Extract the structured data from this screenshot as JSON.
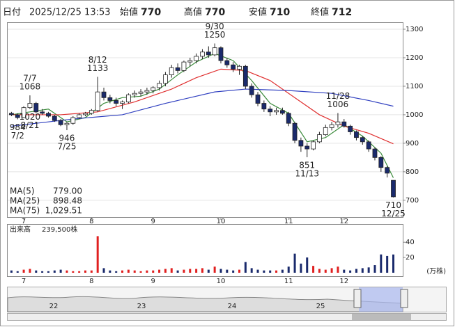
{
  "header": {
    "date_label": "日付",
    "datetime": "2025/12/25 13:53",
    "fields": [
      {
        "label": "始値",
        "value": 770
      },
      {
        "label": "高値",
        "value": 770
      },
      {
        "label": "安値",
        "value": 710
      },
      {
        "label": "終値",
        "value": 712
      }
    ]
  },
  "chart_data": [
    {
      "type": "candlestick",
      "ylim": [
        641,
        1322
      ],
      "yticks": [
        700,
        800,
        900,
        1000,
        1100,
        1200,
        1300
      ],
      "grid": true,
      "xticks": [
        {
          "value": 2,
          "label": "7"
        },
        {
          "value": 13,
          "label": "8"
        },
        {
          "value": 23,
          "label": "9"
        },
        {
          "value": 34,
          "label": "10"
        },
        {
          "value": 45,
          "label": "11"
        },
        {
          "value": 54,
          "label": "12"
        }
      ],
      "open": [
        1005,
        1000,
        990,
        1025,
        1040,
        1010,
        1005,
        995,
        980,
        965,
        970,
        990,
        1000,
        1005,
        1015,
        1080,
        1060,
        1050,
        1040,
        1045,
        1070,
        1075,
        1080,
        1085,
        1095,
        1110,
        1140,
        1165,
        1155,
        1185,
        1190,
        1205,
        1220,
        1210,
        1235,
        1190,
        1175,
        1160,
        1170,
        1100,
        1070,
        1040,
        1020,
        1010,
        1015,
        1005,
        970,
        910,
        890,
        880,
        905,
        930,
        955,
        965,
        975,
        960,
        940,
        920,
        905,
        880,
        850,
        815,
        770
      ],
      "high": [
        1010,
        1005,
        1030,
        1068,
        1045,
        1020,
        1010,
        1000,
        985,
        975,
        995,
        1005,
        1010,
        1020,
        1133,
        1095,
        1070,
        1060,
        1050,
        1075,
        1085,
        1090,
        1095,
        1100,
        1120,
        1150,
        1175,
        1180,
        1190,
        1200,
        1215,
        1230,
        1240,
        1250,
        1240,
        1200,
        1185,
        1175,
        1175,
        1110,
        1080,
        1050,
        1030,
        1025,
        1025,
        1010,
        975,
        920,
        900,
        910,
        940,
        965,
        975,
        1006,
        985,
        965,
        945,
        925,
        910,
        885,
        855,
        820,
        770
      ],
      "low": [
        995,
        984,
        988,
        1020,
        1005,
        1000,
        990,
        975,
        960,
        946,
        965,
        985,
        995,
        1000,
        1010,
        1050,
        1040,
        1030,
        1020,
        1040,
        1060,
        1065,
        1070,
        1075,
        1085,
        1100,
        1130,
        1145,
        1150,
        1170,
        1180,
        1195,
        1200,
        1205,
        1180,
        1165,
        1150,
        1140,
        1090,
        1060,
        1030,
        1010,
        995,
        1000,
        1000,
        960,
        900,
        870,
        851,
        875,
        900,
        925,
        945,
        955,
        955,
        930,
        910,
        895,
        870,
        840,
        800,
        780,
        710
      ],
      "close": [
        1000,
        990,
        1025,
        1040,
        1010,
        1005,
        995,
        980,
        965,
        970,
        990,
        1000,
        1005,
        1015,
        1080,
        1060,
        1050,
        1040,
        1045,
        1070,
        1075,
        1080,
        1085,
        1095,
        1110,
        1140,
        1165,
        1155,
        1185,
        1190,
        1205,
        1220,
        1210,
        1235,
        1190,
        1175,
        1160,
        1170,
        1100,
        1070,
        1040,
        1020,
        1010,
        1015,
        1005,
        970,
        910,
        890,
        880,
        905,
        930,
        955,
        965,
        975,
        960,
        940,
        920,
        905,
        880,
        850,
        815,
        795,
        712
      ],
      "annotations": [
        {
          "date": "7/7",
          "price": 1068,
          "side": "above"
        },
        {
          "date": "7/2",
          "price": 984,
          "side": "below"
        },
        {
          "date": "7/25",
          "price": 946,
          "side": "below"
        },
        {
          "date": "8/12",
          "price": 1133,
          "side": "above"
        },
        {
          "date": "8/21",
          "price": 1020,
          "side": "below"
        },
        {
          "date": "9/30",
          "price": 1250,
          "side": "above"
        },
        {
          "date": "11/13",
          "price": 851,
          "side": "below"
        },
        {
          "date": "11/28",
          "price": 1006,
          "side": "above"
        },
        {
          "date": "12/25",
          "price": 710,
          "side": "below"
        }
      ],
      "series": [
        {
          "name": "MA(5)",
          "color": "#3a8a3a",
          "value_label": "779.00",
          "x": [
            0,
            3,
            6,
            9,
            12,
            15,
            18,
            21,
            24,
            27,
            30,
            33,
            36,
            39,
            42,
            45,
            48,
            51,
            54,
            57,
            60,
            62
          ],
          "values": [
            1000,
            1010,
            1020,
            975,
            990,
            1040,
            1060,
            1065,
            1090,
            1140,
            1185,
            1215,
            1190,
            1120,
            1040,
            1005,
            905,
            920,
            965,
            925,
            865,
            779
          ]
        },
        {
          "name": "MA(25)",
          "color": "#e03030",
          "value_label": "898.48",
          "x": [
            0,
            8,
            14,
            20,
            26,
            30,
            34,
            38,
            42,
            46,
            50,
            54,
            58,
            62
          ],
          "values": [
            1000,
            1000,
            1010,
            1045,
            1090,
            1130,
            1160,
            1155,
            1120,
            1060,
            1000,
            960,
            935,
            898
          ]
        },
        {
          "name": "MA(75)",
          "color": "#3040c0",
          "value_label": "1,029.51",
          "x": [
            0,
            10,
            18,
            25,
            33,
            38,
            45,
            52,
            58,
            62
          ],
          "values": [
            960,
            985,
            1000,
            1040,
            1080,
            1090,
            1085,
            1075,
            1050,
            1030
          ]
        }
      ]
    },
    {
      "type": "volume",
      "title": "出来高",
      "current": "239,500株",
      "unit": "(万株)",
      "ylim": [
        0,
        63
      ],
      "yticks": [
        20,
        40
      ],
      "values": [
        3,
        2,
        4,
        5,
        3,
        2,
        2,
        3,
        4,
        3,
        2,
        2,
        3,
        3,
        48,
        6,
        3,
        2,
        3,
        4,
        3,
        2,
        3,
        3,
        4,
        5,
        6,
        3,
        4,
        5,
        5,
        6,
        4,
        8,
        5,
        4,
        3,
        4,
        14,
        6,
        4,
        3,
        3,
        3,
        4,
        8,
        25,
        12,
        20,
        9,
        5,
        4,
        6,
        8,
        4,
        3,
        5,
        6,
        7,
        10,
        24,
        22,
        23.95
      ]
    }
  ],
  "navigator": {
    "ticks": [
      "22",
      "23",
      "24",
      "25"
    ]
  }
}
